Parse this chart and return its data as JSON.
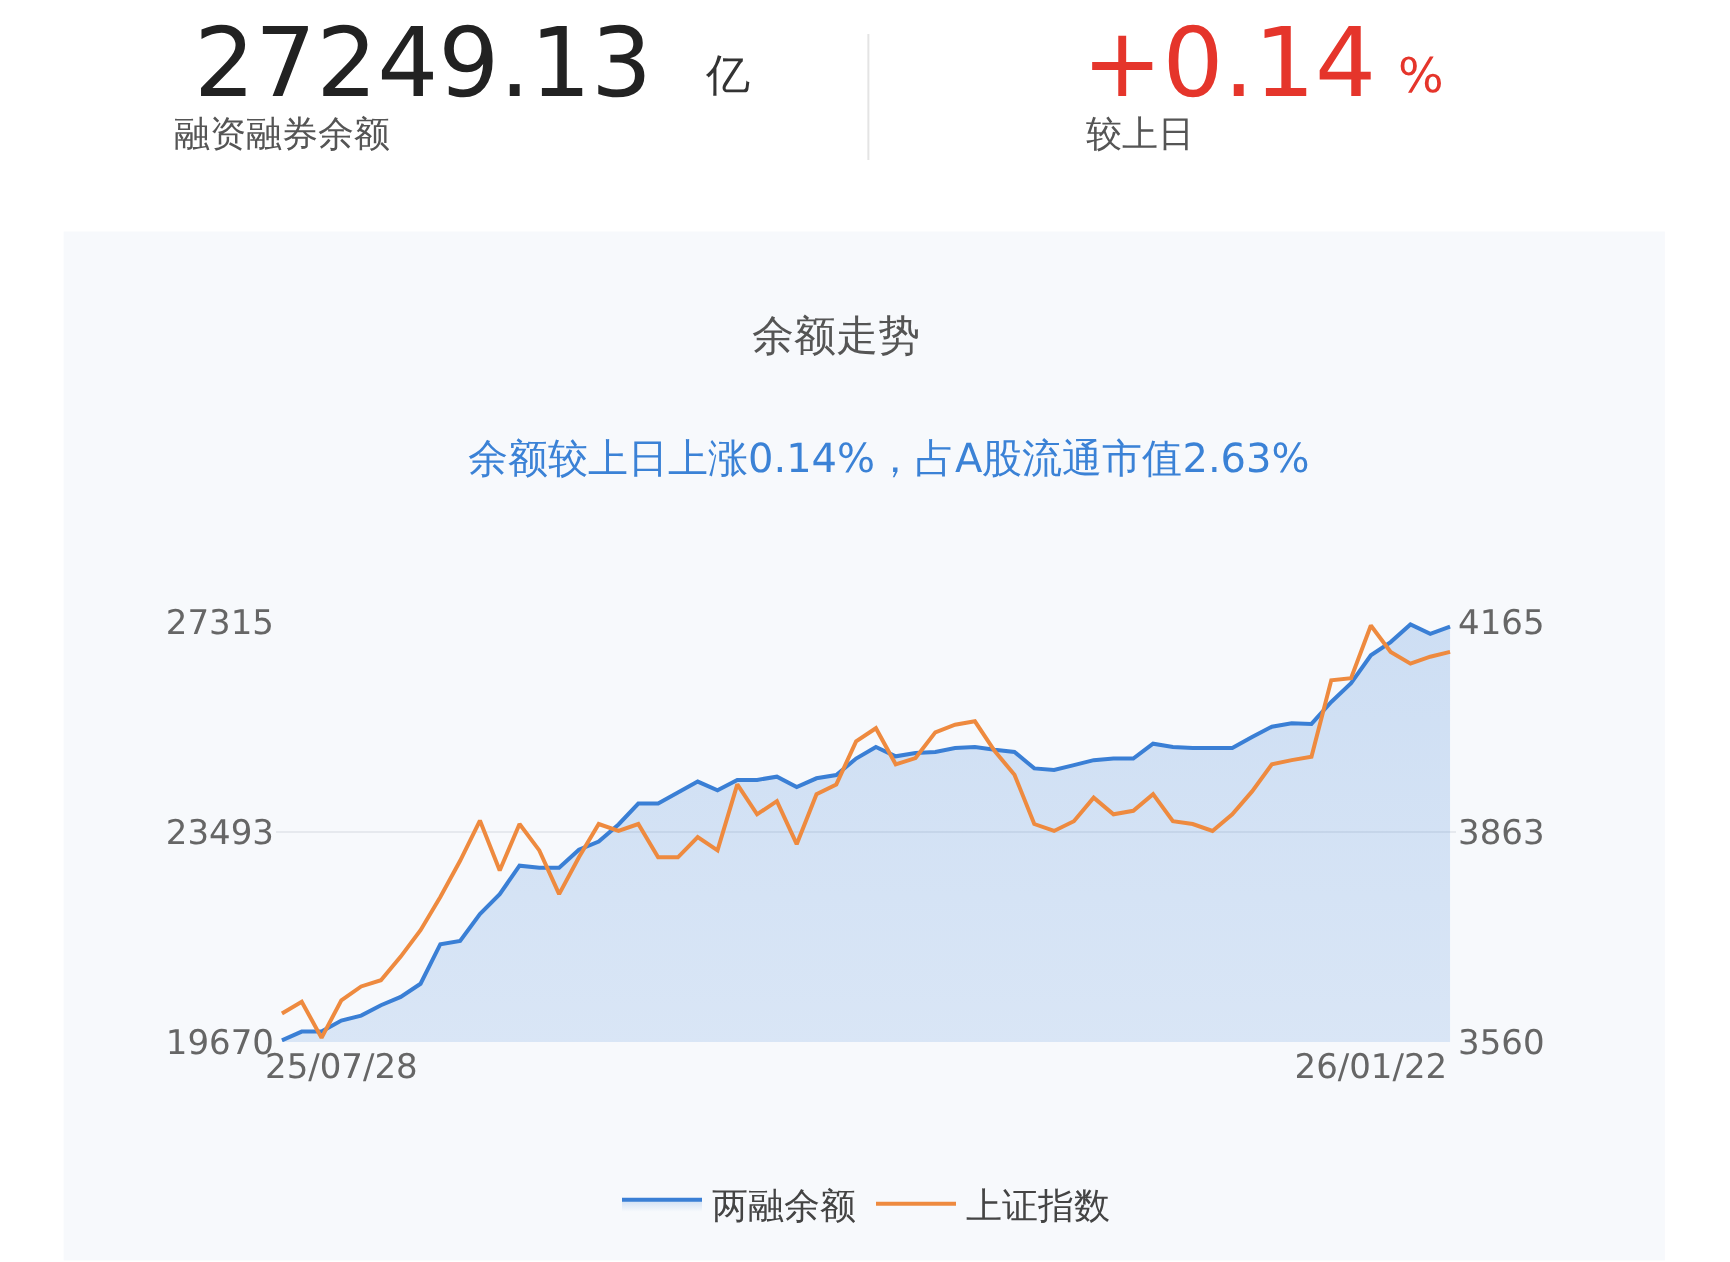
{
  "chart_data": {
    "type": "area",
    "title": "余额走势",
    "subtitle": "余额较上日上涨0.14%，占A股流通市值2.63%",
    "annotations": [
      "27249.13",
      "亿",
      "融资融券余额",
      "+0.14",
      "%",
      "较上日"
    ],
    "categories": [
      null,
      null,
      null,
      "25/07/28",
      null,
      null,
      null,
      null,
      null,
      null,
      null,
      null,
      null,
      null,
      null,
      null,
      null,
      null,
      null,
      null,
      null,
      null,
      null,
      null,
      null,
      null,
      null,
      null,
      null,
      null,
      null,
      null,
      null,
      null,
      null,
      null,
      null,
      null,
      null,
      null,
      null,
      null,
      null,
      null,
      null,
      null,
      null,
      null,
      null,
      null,
      null,
      null,
      null,
      null,
      null,
      "26/01/22",
      null,
      null,
      null,
      null
    ],
    "series": [
      {
        "name": "两融余额",
        "color": "#3a7fd5",
        "values": [
          19700,
          19860,
          19860,
          20060,
          20150,
          20340,
          20490,
          20730,
          21450,
          21510,
          22000,
          22360,
          22880,
          22840,
          22840,
          23170,
          23320,
          23630,
          24010,
          24010,
          24210,
          24410,
          24250,
          24440,
          24440,
          24500,
          24310,
          24470,
          24530,
          24830,
          25040,
          24870,
          24930,
          24950,
          25020,
          25040,
          24990,
          24950,
          24650,
          24620,
          24710,
          24800,
          24830,
          24830,
          25100,
          25040,
          25020,
          25020,
          25020,
          25220,
          25410,
          25470,
          25460,
          25860,
          26200,
          26710,
          26950,
          27270,
          27100,
          27230
        ]
      },
      {
        "name": "上证指数",
        "type": "line",
        "axis": "y2",
        "color": "#ee8a3f",
        "values": [
          3601,
          3618,
          3566,
          3620,
          3640,
          3649,
          3683,
          3721,
          3769,
          3821,
          3879,
          3807,
          3874,
          3836,
          3773,
          3826,
          3874,
          3864,
          3874,
          3826,
          3826,
          3855,
          3836,
          3931,
          3888,
          3907,
          3845,
          3917,
          3931,
          3993,
          4012,
          3960,
          3969,
          4006,
          4017,
          4022,
          3979,
          3945,
          3874,
          3864,
          3878,
          3912,
          3888,
          3893,
          3917,
          3878,
          3874,
          3864,
          3888,
          3921,
          3960,
          3966,
          3971,
          4081,
          4084,
          4160,
          4122,
          4105,
          4115,
          4122
        ]
      }
    ],
    "ylim": [
      19670,
      27315
    ],
    "yticks": [
      19670,
      23493,
      27315
    ],
    "y2lim": [
      3560,
      4165
    ],
    "y2ticks": [
      3560,
      3863,
      4165
    ],
    "grid": "y",
    "legend": "bottom",
    "marker": "none",
    "line_style": "solid"
  }
}
